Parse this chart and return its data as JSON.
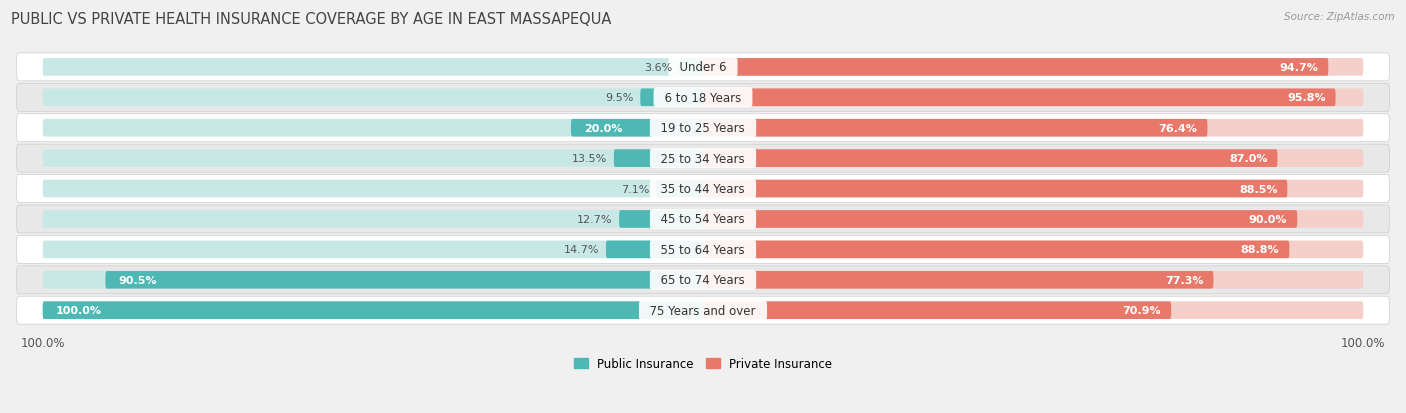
{
  "title": "Public vs Private Health Insurance Coverage by Age in East Massapequa",
  "source": "Source: ZipAtlas.com",
  "categories": [
    "Under 6",
    "6 to 18 Years",
    "19 to 25 Years",
    "25 to 34 Years",
    "35 to 44 Years",
    "45 to 54 Years",
    "55 to 64 Years",
    "65 to 74 Years",
    "75 Years and over"
  ],
  "public_values": [
    3.6,
    9.5,
    20.0,
    13.5,
    7.1,
    12.7,
    14.7,
    90.5,
    100.0
  ],
  "private_values": [
    94.7,
    95.8,
    76.4,
    87.0,
    88.5,
    90.0,
    88.8,
    77.3,
    70.9
  ],
  "public_color": "#4db8b4",
  "private_color": "#e8796a",
  "bg_color": "#f0f0f0",
  "row_color_even": "#ffffff",
  "row_color_odd": "#e8e8e8",
  "legend_public": "Public Insurance",
  "legend_private": "Private Insurance",
  "max_value": 100.0,
  "title_fontsize": 10.5,
  "label_fontsize": 8.5,
  "value_fontsize": 8.0,
  "tick_fontsize": 8.5
}
